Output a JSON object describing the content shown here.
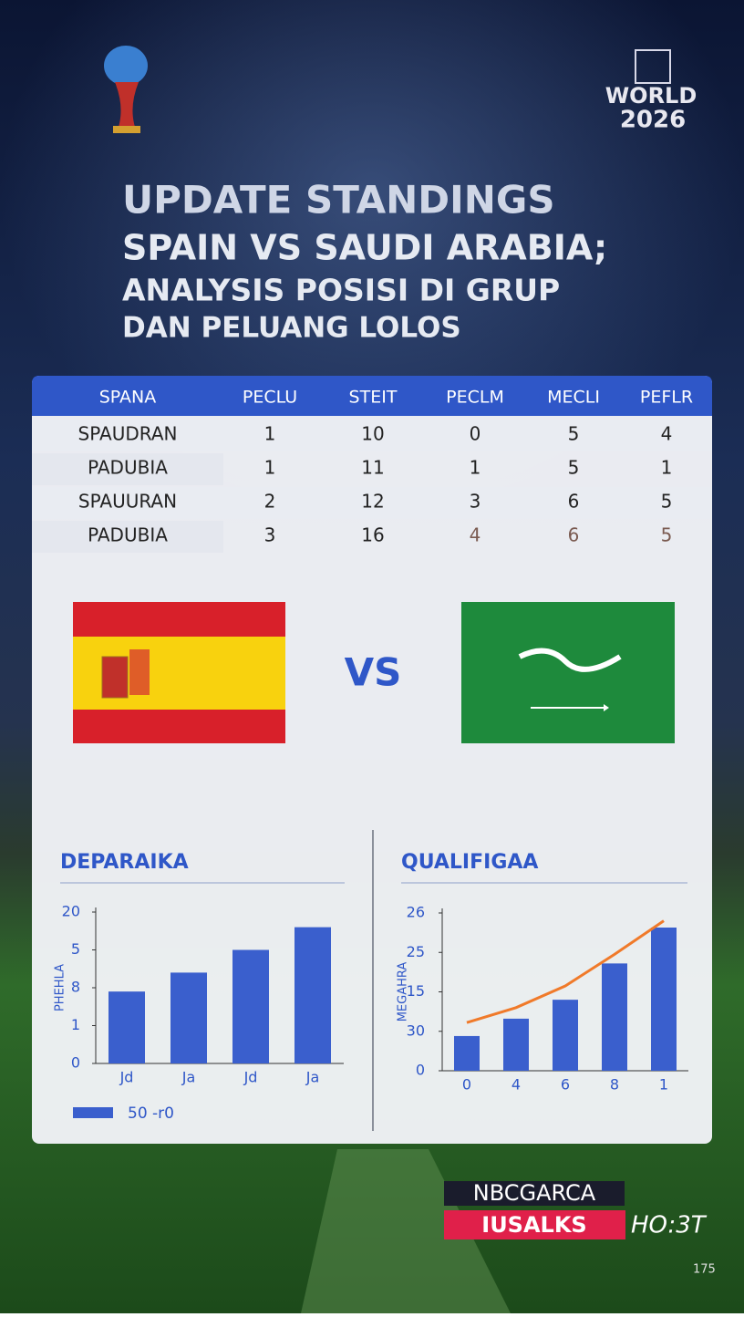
{
  "header": {
    "brand_top": "WORLD",
    "brand_year": "2026",
    "title_lines": [
      "UPDATE STANDINGS",
      "SPAIN VS SAUDI ARABIA;",
      "ANALYSIS POSISI DI GRUP",
      "DAN PELUANG LOLOS"
    ]
  },
  "table": {
    "columns": [
      "SPANA",
      "PECLU",
      "STEIT",
      "PECLM",
      "MECLI",
      "PEFLR"
    ],
    "rows": [
      [
        "SPAUDRAN",
        "1",
        "10",
        "0",
        "5",
        "4"
      ],
      [
        "PADUBIA",
        "1",
        "11",
        "1",
        "5",
        "1"
      ],
      [
        "SPAUURAN",
        "2",
        "12",
        "3",
        "6",
        "5"
      ],
      [
        "PADUBIA",
        "3",
        "16",
        "4",
        "6",
        "5"
      ]
    ]
  },
  "versus": "VS",
  "chart_data": [
    {
      "type": "bar",
      "title": "DEPARAIKA",
      "y_label": "PHEHLA",
      "categories": [
        "Jd",
        "Ja",
        "Jd",
        "Ja"
      ],
      "series": [
        {
          "name": "50 -r0",
          "color": "#3a5fcd",
          "values": [
            1.9,
            2.4,
            3.0,
            3.6
          ]
        }
      ],
      "ylim": [
        0,
        4
      ],
      "yticks": [
        0,
        {
          "value": 1,
          "label": "1"
        },
        {
          "value": 2,
          "label": "8"
        },
        {
          "value": 3,
          "label": "5"
        },
        {
          "value": 4,
          "label": "20"
        }
      ]
    },
    {
      "type": "bar",
      "title": "QUALIFIGAA",
      "y_label": "MEGAHRA",
      "categories": [
        "0",
        "4",
        "6",
        "8",
        "1"
      ],
      "series": [
        {
          "type": "bar",
          "color": "#3a5fcd",
          "values": [
            0.88,
            1.32,
            1.8,
            2.72,
            3.63
          ]
        },
        {
          "type": "line",
          "color": "#f07a2a",
          "values": [
            1.22,
            1.6,
            2.15,
            2.95,
            3.8
          ]
        }
      ],
      "ylim": [
        0,
        4
      ],
      "yticks": [
        0,
        {
          "value": 1,
          "label": "30"
        },
        {
          "value": 2,
          "label": "15"
        },
        {
          "value": 3,
          "label": "25"
        },
        {
          "value": 4,
          "label": "26"
        }
      ]
    }
  ],
  "footer": {
    "badge_top": "NBCGARCA",
    "badge_main": "IUSALKS",
    "badge_side": "HO:3T",
    "page_number": "175"
  }
}
